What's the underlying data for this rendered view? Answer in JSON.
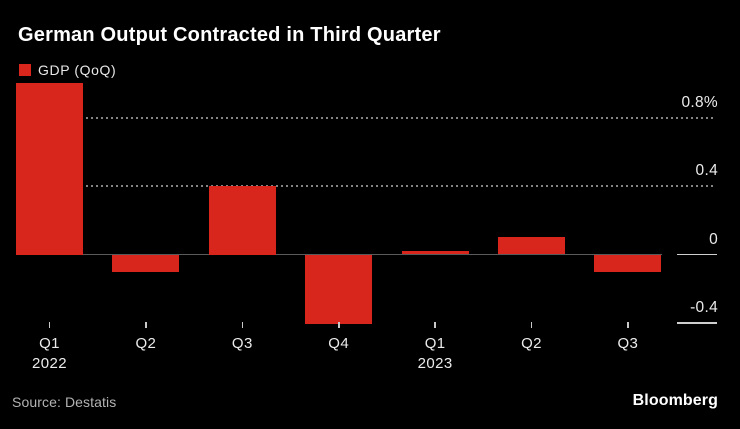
{
  "chart_data": {
    "type": "bar",
    "title": "German Output Contracted in Third Quarter",
    "legend": [
      {
        "label": "GDP (QoQ)",
        "color": "#d9261d"
      }
    ],
    "legend_position": "top-left",
    "unit": "%",
    "y_axis_side": "right",
    "grid": "horizontal dotted",
    "categories": [
      "Q1 2022",
      "Q2 2022",
      "Q3 2022",
      "Q4 2022",
      "Q1 2023",
      "Q2 2023",
      "Q3 2023"
    ],
    "x_labels": [
      {
        "quarter": "Q1",
        "year": "2022"
      },
      {
        "quarter": "Q2"
      },
      {
        "quarter": "Q3"
      },
      {
        "quarter": "Q4"
      },
      {
        "quarter": "Q1",
        "year": "2023"
      },
      {
        "quarter": "Q2"
      },
      {
        "quarter": "Q3"
      }
    ],
    "values": [
      1.0,
      -0.1,
      0.4,
      -0.4,
      0.0,
      0.1,
      -0.1
    ],
    "yticks": [
      {
        "label": "0.8%",
        "value": 0.8,
        "grid": "dotted"
      },
      {
        "label": "0.4",
        "value": 0.4,
        "grid": "dotted"
      },
      {
        "label": "0",
        "value": 0.0,
        "grid": "zero"
      },
      {
        "label": "-0.4",
        "value": -0.4,
        "grid": "stub"
      }
    ],
    "ylim": [
      -0.45,
      1.02
    ],
    "bar_color": "#d9261d",
    "background_color": "#000000"
  },
  "footer": {
    "source": "Source: Destatis",
    "brand": "Bloomberg"
  }
}
